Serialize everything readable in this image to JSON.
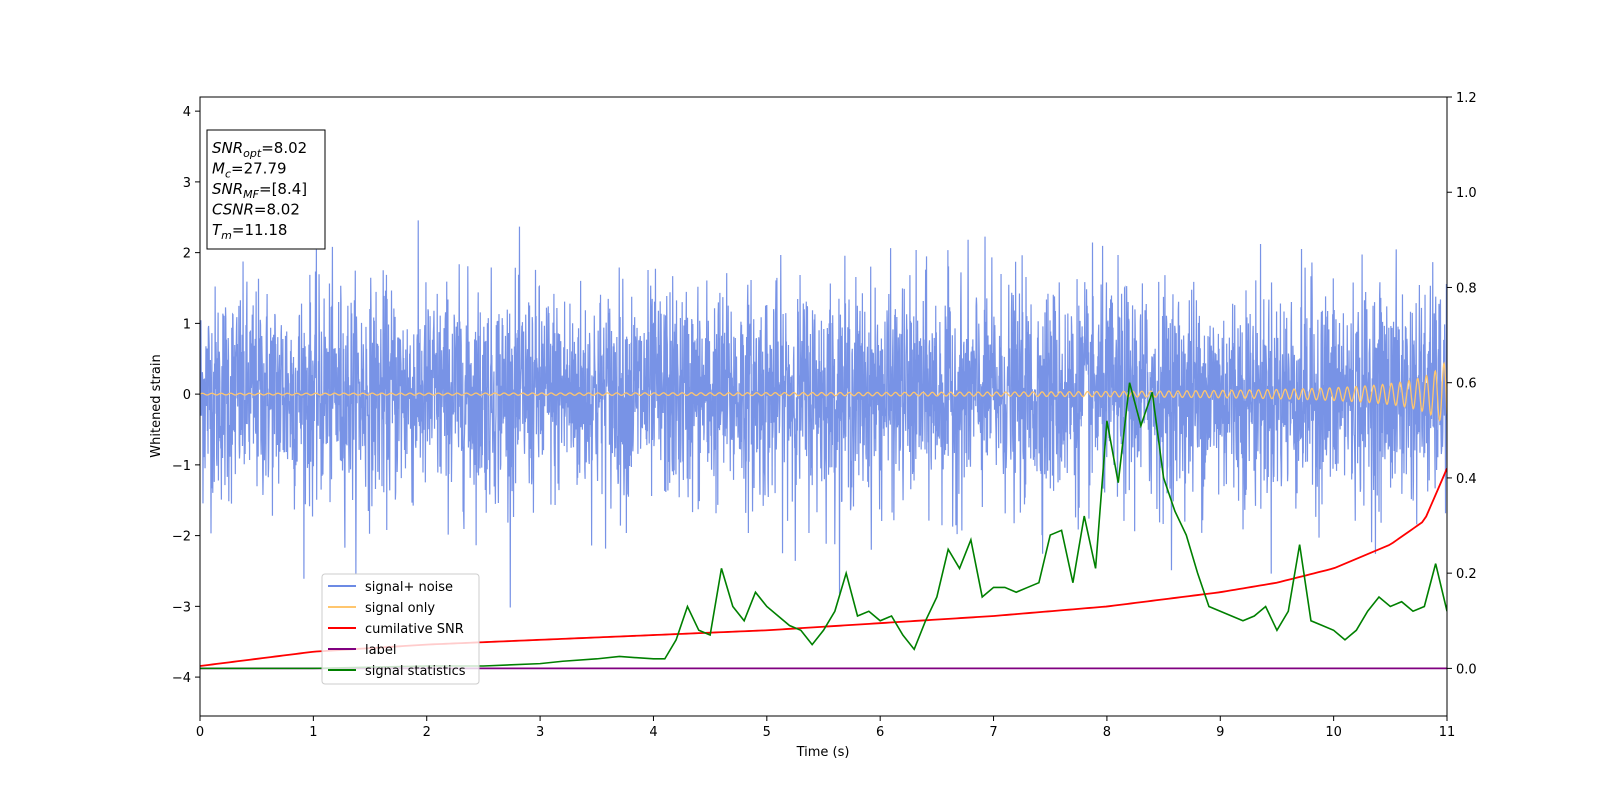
{
  "chart_data": {
    "type": "line",
    "xlabel": "Time (s)",
    "ylabel": "Whitened strain",
    "xlim": [
      0,
      11
    ],
    "ylim_left": [
      -4.55,
      4.2
    ],
    "ylim_right": [
      -0.1,
      1.2
    ],
    "xticks": [
      "0",
      "1",
      "2",
      "3",
      "4",
      "5",
      "6",
      "7",
      "8",
      "9",
      "10",
      "11"
    ],
    "yticks_left": [
      "4",
      "3",
      "2",
      "1",
      "0",
      "−1",
      "−2",
      "−3",
      "−4"
    ],
    "yticks_right": [
      "0.0",
      "0.2",
      "0.4",
      "0.6",
      "0.8",
      "1.0",
      "1.2"
    ],
    "info_box": {
      "lines": [
        {
          "main": "SNR",
          "sub": "opt",
          "rest": "=8.02"
        },
        {
          "main": "M",
          "sub": "c",
          "rest": "=27.79"
        },
        {
          "main": "SNR",
          "sub": "MF",
          "rest": "=[8.4]"
        },
        {
          "main": "CSNR",
          "sub": "",
          "rest": "=8.02"
        },
        {
          "main": "T",
          "sub": "m",
          "rest": "=11.18"
        }
      ]
    },
    "legend": {
      "placement": "lower-left",
      "entries": [
        {
          "label": "signal+ noise",
          "color": "#6c8ae4"
        },
        {
          "label": "signal only",
          "color": "#ffc66e"
        },
        {
          "label": "cumilative SNR",
          "color": "#ff0000"
        },
        {
          "label": "label",
          "color": "#800080"
        },
        {
          "label": "signal statistics",
          "color": "#008000"
        }
      ]
    },
    "series": [
      {
        "name": "signal+ noise",
        "axis": "left",
        "description": "dense whitened strain noise, approx. gaussian with std ~0.75",
        "noise_std": 0.75,
        "color": "#6c8ae4"
      },
      {
        "name": "signal only",
        "axis": "left",
        "description": "chirp oscillation growing toward end",
        "color": "#ffc66e"
      },
      {
        "name": "cumilative SNR",
        "axis": "right",
        "x": [
          0,
          1,
          2,
          3,
          4,
          5,
          6,
          7,
          8,
          9,
          9.5,
          10,
          10.5,
          10.8,
          11
        ],
        "y": [
          0.005,
          0.035,
          0.05,
          0.06,
          0.07,
          0.08,
          0.095,
          0.11,
          0.13,
          0.16,
          0.18,
          0.21,
          0.26,
          0.31,
          0.42
        ],
        "color": "#ff0000"
      },
      {
        "name": "label",
        "axis": "right",
        "x": [
          0,
          11
        ],
        "y": [
          0.0,
          0.0
        ],
        "color": "#800080"
      },
      {
        "name": "signal statistics",
        "axis": "right",
        "x": [
          0,
          1,
          2,
          2.5,
          3,
          3.2,
          3.5,
          3.7,
          4.0,
          4.1,
          4.2,
          4.3,
          4.4,
          4.5,
          4.6,
          4.7,
          4.8,
          4.9,
          5.0,
          5.1,
          5.2,
          5.3,
          5.4,
          5.5,
          5.6,
          5.7,
          5.8,
          5.9,
          6.0,
          6.1,
          6.2,
          6.3,
          6.4,
          6.5,
          6.6,
          6.7,
          6.8,
          6.9,
          7.0,
          7.1,
          7.2,
          7.3,
          7.4,
          7.5,
          7.6,
          7.7,
          7.8,
          7.9,
          8.0,
          8.1,
          8.2,
          8.3,
          8.4,
          8.5,
          8.6,
          8.7,
          8.8,
          8.9,
          9.0,
          9.1,
          9.2,
          9.3,
          9.4,
          9.5,
          9.6,
          9.7,
          9.8,
          9.9,
          10.0,
          10.1,
          10.2,
          10.3,
          10.4,
          10.5,
          10.6,
          10.7,
          10.8,
          10.9,
          11.0
        ],
        "y": [
          0.0,
          0.0,
          0.005,
          0.005,
          0.01,
          0.015,
          0.02,
          0.025,
          0.02,
          0.02,
          0.06,
          0.13,
          0.08,
          0.07,
          0.21,
          0.13,
          0.1,
          0.16,
          0.13,
          0.11,
          0.09,
          0.08,
          0.05,
          0.08,
          0.12,
          0.2,
          0.11,
          0.12,
          0.1,
          0.11,
          0.07,
          0.04,
          0.1,
          0.15,
          0.25,
          0.21,
          0.27,
          0.15,
          0.17,
          0.17,
          0.16,
          0.17,
          0.18,
          0.28,
          0.29,
          0.18,
          0.32,
          0.21,
          0.52,
          0.39,
          0.6,
          0.51,
          0.58,
          0.4,
          0.33,
          0.28,
          0.2,
          0.13,
          0.12,
          0.11,
          0.1,
          0.11,
          0.13,
          0.08,
          0.12,
          0.26,
          0.1,
          0.09,
          0.08,
          0.06,
          0.08,
          0.12,
          0.15,
          0.13,
          0.14,
          0.12,
          0.13,
          0.22,
          0.12
        ],
        "color": "#008000"
      }
    ],
    "grid": false
  }
}
